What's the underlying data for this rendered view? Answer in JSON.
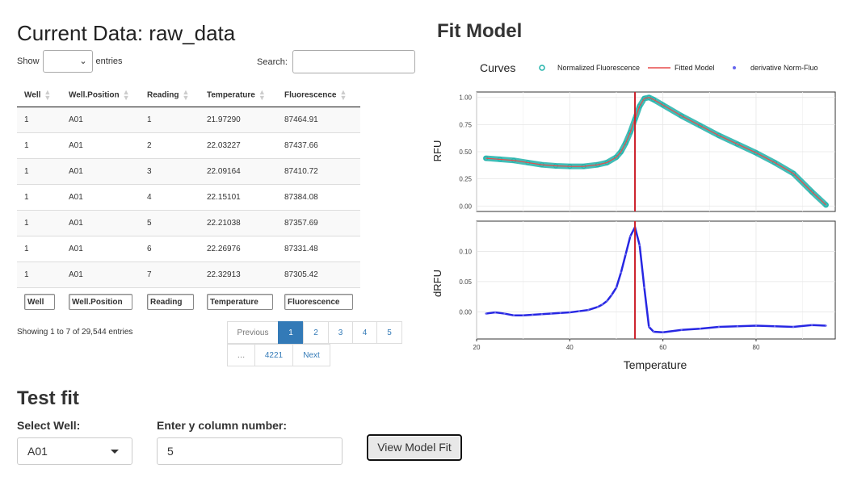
{
  "left": {
    "title": "Current Data: raw_data",
    "show_label": "Show",
    "entries_label": "entries",
    "search_label": "Search:",
    "search_value": "",
    "columns": [
      "Well",
      "Well.Position",
      "Reading",
      "Temperature",
      "Fluorescence"
    ],
    "rows": [
      [
        "1",
        "A01",
        "1",
        "21.97290",
        "87464.91"
      ],
      [
        "1",
        "A01",
        "2",
        "22.03227",
        "87437.66"
      ],
      [
        "1",
        "A01",
        "3",
        "22.09164",
        "87410.72"
      ],
      [
        "1",
        "A01",
        "4",
        "22.15101",
        "87384.08"
      ],
      [
        "1",
        "A01",
        "5",
        "22.21038",
        "87357.69"
      ],
      [
        "1",
        "A01",
        "6",
        "22.26976",
        "87331.48"
      ],
      [
        "1",
        "A01",
        "7",
        "22.32913",
        "87305.42"
      ]
    ],
    "filters": [
      "Well",
      "Well.Position",
      "Reading",
      "Temperature",
      "Fluorescence"
    ],
    "info": "Showing 1 to 7 of 29,544 entries",
    "pagination": {
      "previous": "Previous",
      "pages": [
        "1",
        "2",
        "3",
        "4",
        "5"
      ],
      "current": "1",
      "ellipsis": "…",
      "last": "4221",
      "next": "Next"
    }
  },
  "right": {
    "title": "Fit Model"
  },
  "chart_data": [
    {
      "type": "line",
      "panel": "top",
      "ylabel": "RFU",
      "xlabel": "",
      "xlim": [
        20,
        97
      ],
      "ylim": [
        -0.05,
        1.05
      ],
      "yticks": [
        "0.00",
        "0.25",
        "0.50",
        "0.75",
        "1.00"
      ],
      "legend_title": "Curves",
      "legend_position": "top",
      "series": [
        {
          "name": "Normalized Fluorescence",
          "color": "#20b2aa",
          "x": [
            22,
            25,
            28,
            31,
            34,
            37,
            40,
            43,
            46,
            48,
            50,
            51,
            52,
            53,
            54,
            55,
            56,
            57,
            58,
            60,
            64,
            68,
            72,
            76,
            80,
            84,
            88,
            92,
            95
          ],
          "y": [
            0.44,
            0.43,
            0.42,
            0.4,
            0.38,
            0.37,
            0.365,
            0.365,
            0.38,
            0.4,
            0.45,
            0.5,
            0.58,
            0.68,
            0.8,
            0.92,
            0.99,
            1.0,
            0.98,
            0.93,
            0.83,
            0.74,
            0.65,
            0.57,
            0.49,
            0.4,
            0.3,
            0.13,
            0.01
          ]
        },
        {
          "name": "Fitted Model",
          "color": "#e74c4c",
          "x": [
            22,
            25,
            28,
            31,
            34,
            37,
            40,
            43,
            46,
            48,
            50,
            51,
            52,
            53,
            54,
            55,
            56,
            57,
            58,
            60,
            64,
            68,
            72,
            76,
            80,
            84,
            88,
            92,
            95
          ],
          "y": [
            0.44,
            0.43,
            0.42,
            0.4,
            0.38,
            0.37,
            0.365,
            0.365,
            0.38,
            0.4,
            0.45,
            0.5,
            0.58,
            0.68,
            0.8,
            0.92,
            0.99,
            1.0,
            0.98,
            0.93,
            0.83,
            0.74,
            0.65,
            0.57,
            0.49,
            0.4,
            0.3,
            0.13,
            0.01
          ]
        }
      ],
      "vline": 54
    },
    {
      "type": "scatter",
      "panel": "bottom",
      "ylabel": "dRFU",
      "xlabel": "Temperature",
      "xlim": [
        20,
        97
      ],
      "ylim": [
        -0.045,
        0.15
      ],
      "xticks": [
        "20",
        "40",
        "60",
        "80"
      ],
      "yticks": [
        "0.00",
        "0.05",
        "0.10"
      ],
      "series": [
        {
          "name": "derivative Norm-Fluo",
          "color": "#1010e0",
          "x": [
            22,
            24,
            26,
            28,
            30,
            32,
            34,
            36,
            38,
            40,
            42,
            44,
            46,
            47,
            48,
            49,
            50,
            51,
            52,
            53,
            54,
            55,
            56,
            57,
            58,
            60,
            64,
            68,
            72,
            76,
            80,
            84,
            88,
            92,
            95
          ],
          "y": [
            -0.003,
            -0.001,
            -0.003,
            -0.006,
            -0.006,
            -0.005,
            -0.004,
            -0.003,
            -0.002,
            -0.001,
            0.001,
            0.003,
            0.008,
            0.012,
            0.018,
            0.028,
            0.04,
            0.065,
            0.095,
            0.125,
            0.14,
            0.11,
            0.04,
            -0.025,
            -0.033,
            -0.034,
            -0.03,
            -0.028,
            -0.025,
            -0.024,
            -0.023,
            -0.024,
            -0.025,
            -0.022,
            -0.023
          ]
        }
      ],
      "vline": 54
    }
  ],
  "test_fit": {
    "title": "Test fit",
    "select_well_label": "Select Well:",
    "select_well_value": "A01",
    "ycol_label": "Enter y column number:",
    "ycol_value": "5",
    "view_button": "View Model Fit"
  },
  "colors": {
    "accent": "#337ab7",
    "vline": "#cc1f2a"
  }
}
